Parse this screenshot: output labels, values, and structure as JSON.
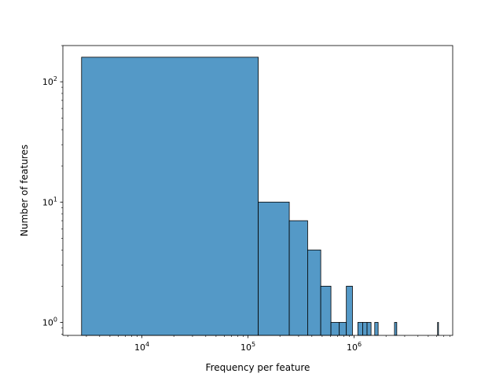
{
  "chart_data": {
    "type": "bar",
    "xlabel": "Frequency per feature",
    "ylabel": "Number of features",
    "xscale": "log",
    "yscale": "log",
    "xlim": [
      1800,
      8500000
    ],
    "ylim": [
      0.78,
      200
    ],
    "bar_color": "#5499c7",
    "edge_color": "#000000",
    "x_ticks": [
      {
        "value": 10000,
        "base": "10",
        "exp": "4"
      },
      {
        "value": 100000,
        "base": "10",
        "exp": "5"
      },
      {
        "value": 1000000,
        "base": "10",
        "exp": "6"
      }
    ],
    "y_ticks": [
      {
        "value": 1,
        "base": "10",
        "exp": "0"
      },
      {
        "value": 10,
        "base": "10",
        "exp": "1"
      },
      {
        "value": 100,
        "base": "10",
        "exp": "2"
      }
    ],
    "bins": [
      {
        "x0": 2700,
        "x1": 125000,
        "count": 160
      },
      {
        "x0": 125000,
        "x1": 245000,
        "count": 10
      },
      {
        "x0": 245000,
        "x1": 365000,
        "count": 7
      },
      {
        "x0": 365000,
        "x1": 485000,
        "count": 4
      },
      {
        "x0": 485000,
        "x1": 605000,
        "count": 2
      },
      {
        "x0": 605000,
        "x1": 725000,
        "count": 1
      },
      {
        "x0": 725000,
        "x1": 845000,
        "count": 1
      },
      {
        "x0": 845000,
        "x1": 965000,
        "count": 2
      },
      {
        "x0": 1085000,
        "x1": 1205000,
        "count": 1
      },
      {
        "x0": 1205000,
        "x1": 1325000,
        "count": 1
      },
      {
        "x0": 1325000,
        "x1": 1445000,
        "count": 1
      },
      {
        "x0": 1565000,
        "x1": 1685000,
        "count": 1
      },
      {
        "x0": 2405000,
        "x1": 2525000,
        "count": 1
      },
      {
        "x0": 6125000,
        "x1": 6245000,
        "count": 1
      }
    ]
  }
}
